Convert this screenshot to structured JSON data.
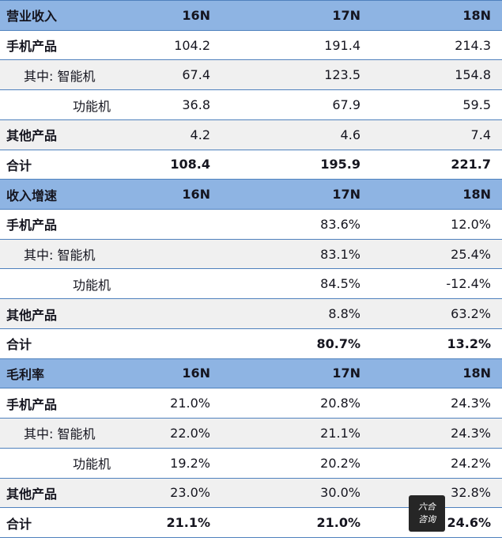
{
  "colors": {
    "header_bg": "#8EB4E3",
    "row_alt_bg": "#F0F0F0",
    "border": "#4F81BD",
    "watermark_bg": "#262626"
  },
  "watermark": {
    "text": "六合咨询"
  },
  "tables": [
    {
      "header": {
        "label": "营业收入",
        "cols": [
          "16N",
          "17N",
          "18N"
        ]
      },
      "rows": [
        {
          "label": "手机产品",
          "indent": 0,
          "bold": true,
          "total": false,
          "values": [
            "104.2",
            "191.4",
            "214.3"
          ]
        },
        {
          "label": "其中: 智能机",
          "indent": 1,
          "bold": false,
          "total": false,
          "values": [
            "67.4",
            "123.5",
            "154.8"
          ]
        },
        {
          "label": "功能机",
          "indent": 2,
          "bold": false,
          "total": false,
          "values": [
            "36.8",
            "67.9",
            "59.5"
          ]
        },
        {
          "label": "其他产品",
          "indent": 0,
          "bold": true,
          "total": false,
          "values": [
            "4.2",
            "4.6",
            "7.4"
          ]
        },
        {
          "label": "合计",
          "indent": 0,
          "bold": true,
          "total": true,
          "values": [
            "108.4",
            "195.9",
            "221.7"
          ]
        }
      ]
    },
    {
      "header": {
        "label": "收入增速",
        "cols": [
          "16N",
          "17N",
          "18N"
        ]
      },
      "rows": [
        {
          "label": "手机产品",
          "indent": 0,
          "bold": true,
          "total": false,
          "values": [
            "",
            "83.6%",
            "12.0%"
          ]
        },
        {
          "label": "其中: 智能机",
          "indent": 1,
          "bold": false,
          "total": false,
          "values": [
            "",
            "83.1%",
            "25.4%"
          ]
        },
        {
          "label": "功能机",
          "indent": 2,
          "bold": false,
          "total": false,
          "values": [
            "",
            "84.5%",
            "-12.4%"
          ]
        },
        {
          "label": "其他产品",
          "indent": 0,
          "bold": true,
          "total": false,
          "values": [
            "",
            "8.8%",
            "63.2%"
          ]
        },
        {
          "label": "合计",
          "indent": 0,
          "bold": true,
          "total": true,
          "values": [
            "",
            "80.7%",
            "13.2%"
          ]
        }
      ]
    },
    {
      "header": {
        "label": "毛利率",
        "cols": [
          "16N",
          "17N",
          "18N"
        ]
      },
      "rows": [
        {
          "label": "手机产品",
          "indent": 0,
          "bold": true,
          "total": false,
          "values": [
            "21.0%",
            "20.8%",
            "24.3%"
          ]
        },
        {
          "label": "其中: 智能机",
          "indent": 1,
          "bold": false,
          "total": false,
          "values": [
            "22.0%",
            "21.1%",
            "24.3%"
          ]
        },
        {
          "label": "功能机",
          "indent": 2,
          "bold": false,
          "total": false,
          "values": [
            "19.2%",
            "20.2%",
            "24.2%"
          ]
        },
        {
          "label": "其他产品",
          "indent": 0,
          "bold": true,
          "total": false,
          "values": [
            "23.0%",
            "30.0%",
            "32.8%"
          ]
        },
        {
          "label": "合计",
          "indent": 0,
          "bold": true,
          "total": true,
          "values": [
            "21.1%",
            "21.0%",
            "24.6%"
          ]
        }
      ]
    }
  ]
}
